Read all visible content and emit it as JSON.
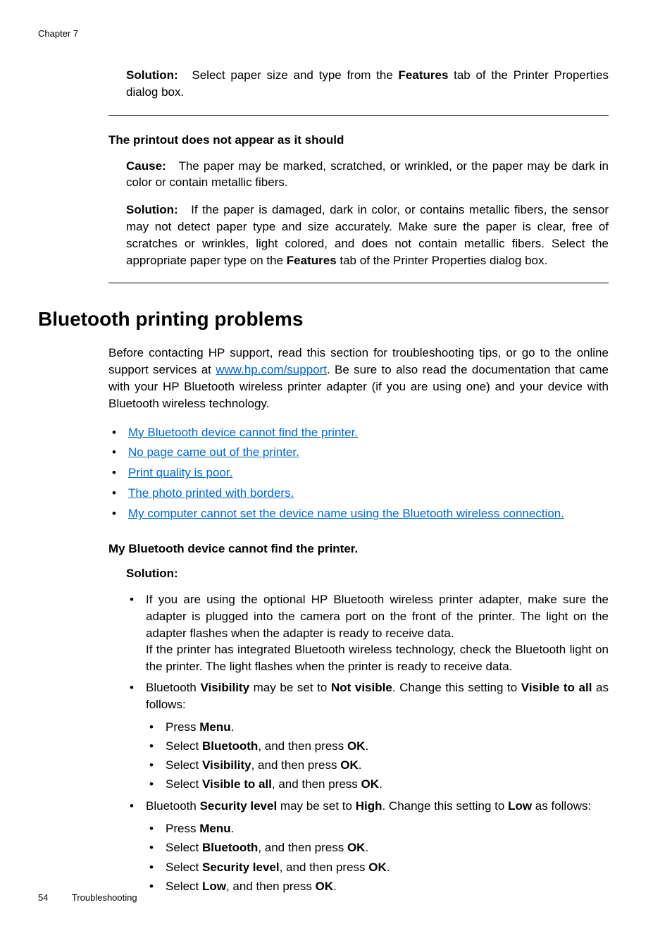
{
  "header": {
    "chapter": "Chapter 7"
  },
  "block1": {
    "solution_label": "Solution:",
    "solution_pre": "Select paper size and type from the ",
    "solution_bold": "Features",
    "solution_post": " tab of the Printer Properties dialog box."
  },
  "block2": {
    "heading": "The printout does not appear as it should",
    "cause_label": "Cause:",
    "cause_text": "The paper may be marked, scratched, or wrinkled, or the paper may be dark in color or contain metallic fibers.",
    "solution_label": "Solution:",
    "solution_pre": "If the paper is damaged, dark in color, or contains metallic fibers, the sensor may not detect paper type and size accurately. Make sure the paper is clear, free of scratches or wrinkles, light colored, and does not contain metallic fibers. Select the appropriate paper type on the ",
    "solution_bold": "Features",
    "solution_post": " tab of the Printer Properties dialog box."
  },
  "section": {
    "title": "Bluetooth printing problems",
    "intro_pre": "Before contacting HP support, read this section for troubleshooting tips, or go to the online support services at ",
    "intro_link": "www.hp.com/support",
    "intro_post": ". Be sure to also read the documentation that came with your HP Bluetooth wireless printer adapter (if you are using one) and your device with Bluetooth wireless technology.",
    "links": [
      "My Bluetooth device cannot find the printer.",
      "No page came out of the printer.",
      "Print quality is poor.",
      "The photo printed with borders.",
      "My computer cannot set the device name using the Bluetooth wireless connection."
    ]
  },
  "subsection": {
    "heading": "My Bluetooth device cannot find the printer.",
    "solution_label": "Solution:",
    "bullet1_p1": "If you are using the optional HP Bluetooth wireless printer adapter, make sure the adapter is plugged into the camera port on the front of the printer. The light on the adapter flashes when the adapter is ready to receive data.",
    "bullet1_p2": "If the printer has integrated Bluetooth wireless technology, check the Bluetooth light on the printer. The light flashes when the printer is ready to receive data.",
    "bullet2": {
      "pre": "Bluetooth ",
      "b1": "Visibility",
      "mid1": " may be set to ",
      "b2": "Not visible",
      "mid2": ". Change this setting to ",
      "b3": "Visible to all",
      "post": " as follows:",
      "sub": [
        {
          "pre": "Press ",
          "b1": "Menu",
          "post": "."
        },
        {
          "pre": "Select ",
          "b1": "Bluetooth",
          "mid": ", and then press ",
          "b2": "OK",
          "post": "."
        },
        {
          "pre": "Select ",
          "b1": "Visibility",
          "mid": ", and then press ",
          "b2": "OK",
          "post": "."
        },
        {
          "pre": "Select ",
          "b1": "Visible to all",
          "mid": ", and then press ",
          "b2": "OK",
          "post": "."
        }
      ]
    },
    "bullet3": {
      "pre": "Bluetooth ",
      "b1": "Security level",
      "mid1": " may be set to ",
      "b2": "High",
      "mid2": ". Change this setting to ",
      "b3": "Low",
      "post": " as follows:",
      "sub": [
        {
          "pre": "Press ",
          "b1": "Menu",
          "post": "."
        },
        {
          "pre": "Select ",
          "b1": "Bluetooth",
          "mid": ", and then press ",
          "b2": "OK",
          "post": "."
        },
        {
          "pre": "Select ",
          "b1": "Security level",
          "mid": ", and then press ",
          "b2": "OK",
          "post": "."
        },
        {
          "pre": "Select ",
          "b1": "Low",
          "mid": ", and then press ",
          "b2": "OK",
          "post": "."
        }
      ]
    }
  },
  "footer": {
    "page": "54",
    "section": "Troubleshooting"
  }
}
